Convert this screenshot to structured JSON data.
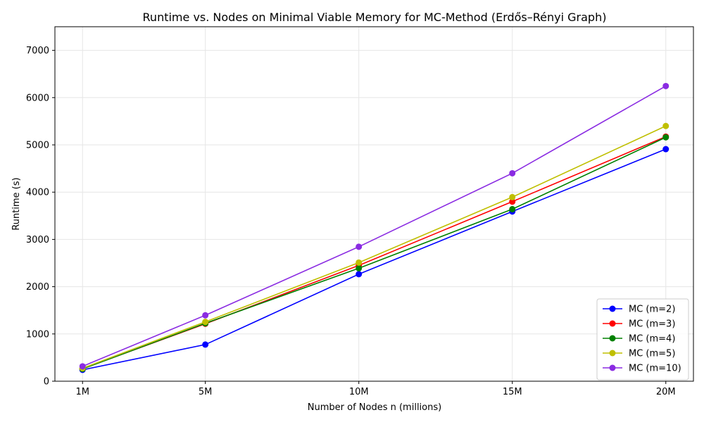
{
  "chart_data": {
    "type": "line",
    "title": "Runtime vs. Nodes on Minimal Viable Memory for MC-Method (Erdős–Rényi Graph)",
    "xlabel": "Number of Nodes n (millions)",
    "ylabel": "Runtime (s)",
    "x": [
      1,
      5,
      10,
      15,
      20
    ],
    "x_tick_labels": [
      "1M",
      "5M",
      "10M",
      "15M",
      "20M"
    ],
    "xlim": [
      0.1,
      20.9
    ],
    "ylim": [
      0,
      7500
    ],
    "y_ticks": [
      0,
      1000,
      2000,
      3000,
      4000,
      5000,
      6000,
      7000
    ],
    "grid": true,
    "legend_position": "lower-right",
    "series": [
      {
        "name": "MC (m=2)",
        "color": "#0000ff",
        "values": [
          240,
          775,
          2265,
          3590,
          4910
        ]
      },
      {
        "name": "MC (m=3)",
        "color": "#ff0000",
        "values": [
          265,
          1215,
          2450,
          3800,
          5175
        ]
      },
      {
        "name": "MC (m=4)",
        "color": "#008000",
        "values": [
          260,
          1225,
          2390,
          3640,
          5160
        ]
      },
      {
        "name": "MC (m=5)",
        "color": "#bfbf00",
        "values": [
          275,
          1255,
          2510,
          3895,
          5400
        ]
      },
      {
        "name": "MC (m=10)",
        "color": "#8a2be2",
        "values": [
          315,
          1395,
          2845,
          4400,
          6245
        ]
      }
    ]
  }
}
